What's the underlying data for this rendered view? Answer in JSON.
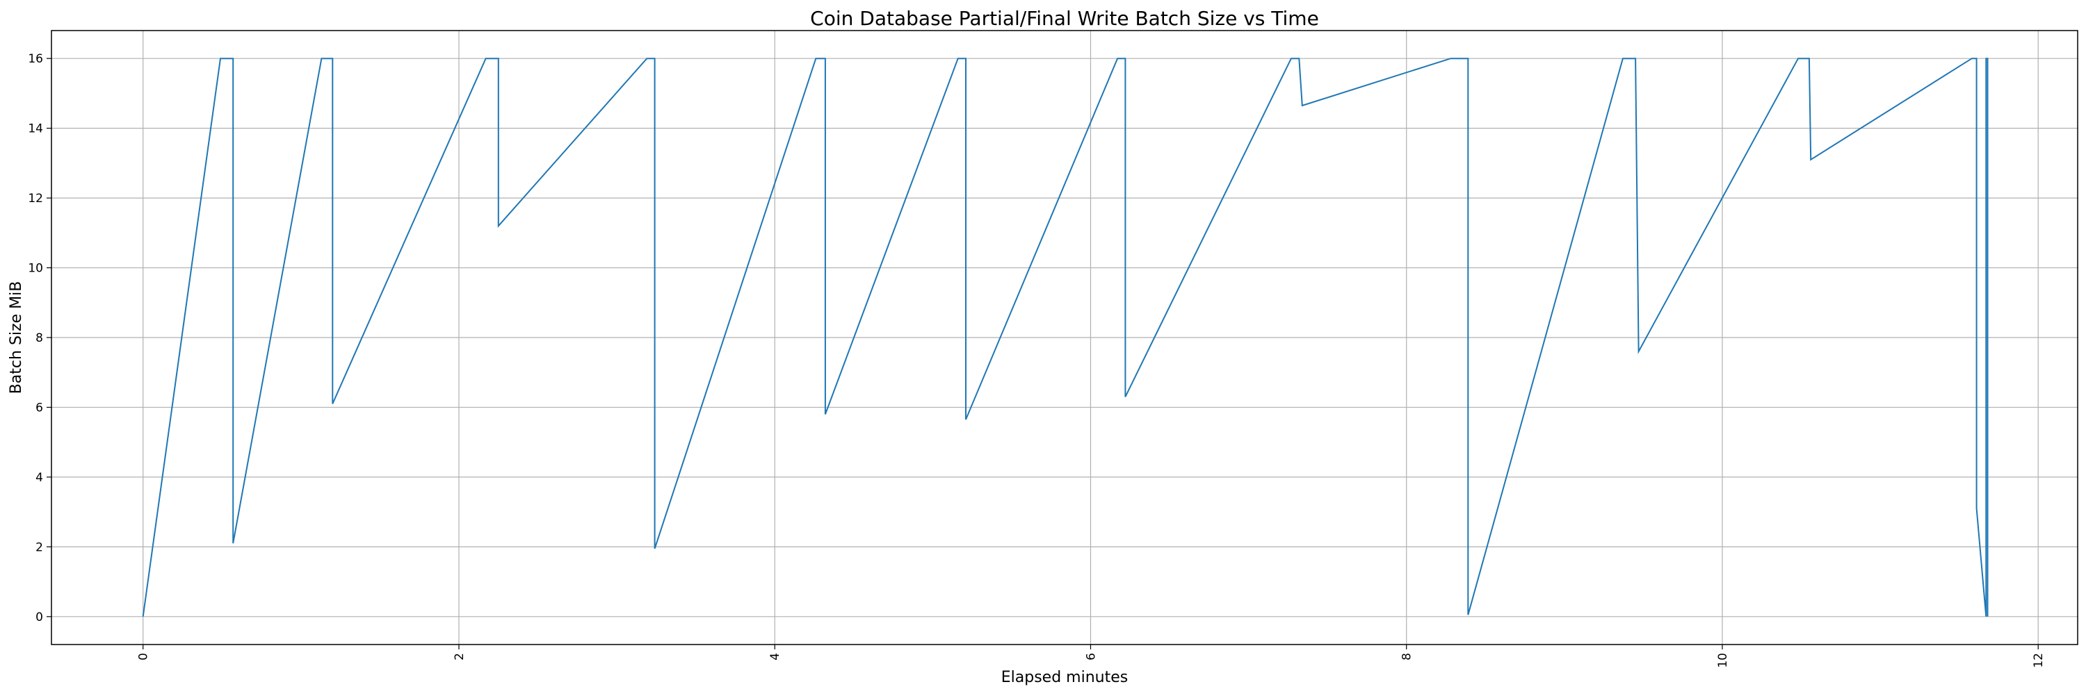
{
  "chart_data": {
    "type": "line",
    "title": "Coin Database Partial/Final Write Batch Size vs Time",
    "xlabel": "Elapsed minutes",
    "ylabel": "Batch Size MiB",
    "xlim": [
      -0.58,
      12.25
    ],
    "ylim": [
      -0.8,
      16.8
    ],
    "xticks": [
      0,
      2,
      4,
      6,
      8,
      10,
      12
    ],
    "yticks": [
      0,
      2,
      4,
      6,
      8,
      10,
      12,
      14,
      16
    ],
    "x_tick_rotation": 90,
    "grid": true,
    "legend": "none",
    "series": [
      {
        "color": "#1f77b4",
        "points": [
          [
            0.0,
            0.0
          ],
          [
            0.49,
            16.0
          ],
          [
            0.57,
            16.0
          ],
          [
            0.57,
            2.1
          ],
          [
            1.13,
            16.0
          ],
          [
            1.2,
            16.0
          ],
          [
            1.2,
            6.1
          ],
          [
            2.17,
            16.0
          ],
          [
            2.25,
            16.0
          ],
          [
            2.25,
            11.2
          ],
          [
            3.19,
            16.0
          ],
          [
            3.24,
            16.0
          ],
          [
            3.24,
            1.95
          ],
          [
            4.26,
            16.0
          ],
          [
            4.32,
            16.0
          ],
          [
            4.32,
            5.8
          ],
          [
            5.16,
            16.0
          ],
          [
            5.21,
            16.0
          ],
          [
            5.21,
            5.65
          ],
          [
            6.17,
            16.0
          ],
          [
            6.22,
            16.0
          ],
          [
            6.22,
            6.3
          ],
          [
            7.27,
            16.0
          ],
          [
            7.32,
            16.0
          ],
          [
            7.34,
            14.65
          ],
          [
            8.28,
            16.0
          ],
          [
            8.39,
            16.0
          ],
          [
            8.39,
            0.05
          ],
          [
            9.37,
            16.0
          ],
          [
            9.45,
            16.0
          ],
          [
            9.47,
            7.6
          ],
          [
            10.48,
            16.0
          ],
          [
            10.55,
            16.0
          ],
          [
            10.56,
            13.1
          ],
          [
            11.58,
            16.0
          ],
          [
            11.61,
            16.0
          ],
          [
            11.61,
            3.1
          ],
          [
            11.67,
            0.0
          ],
          [
            11.67,
            16.0
          ],
          [
            11.68,
            16.0
          ],
          [
            11.68,
            0.0
          ]
        ]
      }
    ]
  }
}
